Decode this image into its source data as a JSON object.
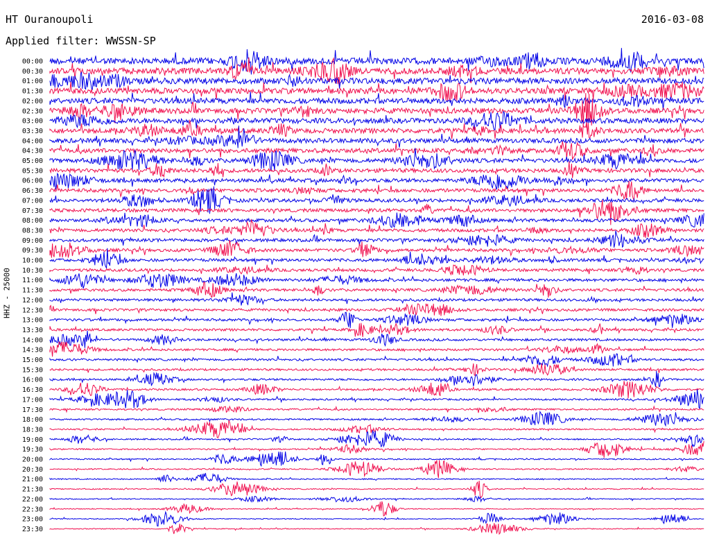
{
  "header": {
    "station": "HT Ouranoupoli",
    "date": "2016-03-08",
    "filter": "Applied filter: WWSSN-SP"
  },
  "chart_data": {
    "type": "line",
    "title": "HT Ouranoupoli",
    "ylabel": "HHZ - 25000",
    "row_labels": [
      "00:00",
      "00:30",
      "01:00",
      "01:30",
      "02:00",
      "02:30",
      "03:00",
      "03:30",
      "04:00",
      "04:30",
      "05:00",
      "05:30",
      "06:00",
      "06:30",
      "07:00",
      "07:30",
      "08:00",
      "08:30",
      "09:00",
      "09:30",
      "10:00",
      "10:30",
      "11:00",
      "11:30",
      "12:00",
      "12:30",
      "13:00",
      "13:30",
      "14:00",
      "14:30",
      "15:00",
      "15:30",
      "16:00",
      "16:30",
      "17:00",
      "17:30",
      "18:00",
      "18:30",
      "19:00",
      "19:30",
      "20:00",
      "20:30",
      "21:00",
      "21:30",
      "22:00",
      "22:30",
      "23:00",
      "23:30"
    ],
    "colors": [
      "#0000e6",
      "#f0104f"
    ],
    "grid": false,
    "legend": "none"
  }
}
